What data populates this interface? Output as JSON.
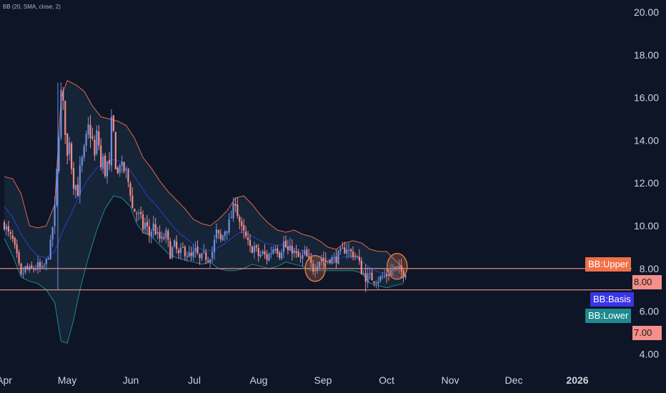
{
  "indicator": {
    "label": "BB (20, SMA, close, 2)"
  },
  "tags": {
    "upper_name": "BB:Upper",
    "upper_value": "8.00",
    "basis_name": "BB:Basis",
    "lower_name": "BB:Lower",
    "lower_value": "7.00"
  },
  "colors": {
    "background": "#0e1527",
    "up_candle": "#6f8fe0",
    "down_candle": "#f28b8b",
    "upper_band": "#e4664c",
    "basis": "#2b3fc8",
    "lower_band": "#1f8a8a",
    "band_fill": "#16273b",
    "hline": "#f0968c",
    "circle": "#e07a4a",
    "tag_upper": "#f07048",
    "tag_basis": "#3a35e6",
    "tag_lower": "#1e8a8f",
    "tag_value": "#f48f8a"
  },
  "chart_data": {
    "type": "candlestick",
    "title": "",
    "ylim": [
      4.0,
      20.0
    ],
    "y_ticks": [
      "20.00",
      "18.00",
      "16.00",
      "14.00",
      "12.00",
      "10.00",
      "8.00",
      "6.00",
      "4.00"
    ],
    "x_ticks": [
      "Apr",
      "May",
      "Jun",
      "Jul",
      "Aug",
      "Sep",
      "Oct",
      "Nov",
      "Dec",
      "2026"
    ],
    "horizontal_lines": [
      8.0,
      7.0
    ],
    "highlight_circles": [
      {
        "day": 148,
        "price": 8.0
      },
      {
        "day": 187,
        "price": 8.1
      }
    ],
    "close_anchors": [
      [
        0,
        10.1
      ],
      [
        2,
        9.6
      ],
      [
        4,
        9.3
      ],
      [
        6,
        8.5
      ],
      [
        8,
        7.6
      ],
      [
        10,
        8.0
      ],
      [
        12,
        7.9
      ],
      [
        14,
        8.0
      ],
      [
        16,
        8.1
      ],
      [
        18,
        7.9
      ],
      [
        20,
        8.3
      ],
      [
        22,
        9.1
      ],
      [
        24,
        10.8
      ],
      [
        25,
        12.5
      ],
      [
        26,
        14.4
      ],
      [
        27,
        16.2
      ],
      [
        28,
        15.6
      ],
      [
        29,
        14.5
      ],
      [
        30,
        13.2
      ],
      [
        31,
        14.1
      ],
      [
        32,
        12.8
      ],
      [
        33,
        12.0
      ],
      [
        34,
        11.9
      ],
      [
        35,
        11.6
      ],
      [
        36,
        12.6
      ],
      [
        38,
        13.5
      ],
      [
        40,
        14.6
      ],
      [
        42,
        14.0
      ],
      [
        43,
        13.2
      ],
      [
        44,
        14.3
      ],
      [
        45,
        13.8
      ],
      [
        46,
        12.7
      ],
      [
        47,
        13.1
      ],
      [
        48,
        12.5
      ],
      [
        49,
        12.9
      ],
      [
        50,
        12.7
      ],
      [
        51,
        14.8
      ],
      [
        52,
        14.3
      ],
      [
        53,
        12.9
      ],
      [
        54,
        12.4
      ],
      [
        55,
        13.0
      ],
      [
        56,
        12.7
      ],
      [
        58,
        12.5
      ],
      [
        60,
        11.6
      ],
      [
        61,
        10.8
      ],
      [
        63,
        10.6
      ],
      [
        65,
        10.3
      ],
      [
        66,
        9.9
      ],
      [
        67,
        10.1
      ],
      [
        69,
        9.6
      ],
      [
        71,
        10.0
      ],
      [
        73,
        9.5
      ],
      [
        75,
        9.3
      ],
      [
        77,
        9.6
      ],
      [
        79,
        8.7
      ],
      [
        81,
        9.1
      ],
      [
        83,
        8.6
      ],
      [
        85,
        8.9
      ],
      [
        87,
        8.7
      ],
      [
        89,
        8.5
      ],
      [
        91,
        8.8
      ],
      [
        93,
        8.4
      ],
      [
        95,
        8.6
      ],
      [
        97,
        8.5
      ],
      [
        99,
        8.8
      ],
      [
        101,
        9.7
      ],
      [
        103,
        9.3
      ],
      [
        105,
        9.8
      ],
      [
        107,
        10.1
      ],
      [
        109,
        10.8
      ],
      [
        110,
        11.2
      ],
      [
        111,
        10.6
      ],
      [
        112,
        10.2
      ],
      [
        113,
        9.8
      ],
      [
        115,
        9.4
      ],
      [
        117,
        8.9
      ],
      [
        119,
        9.0
      ],
      [
        121,
        8.6
      ],
      [
        123,
        8.7
      ],
      [
        125,
        8.5
      ],
      [
        127,
        8.8
      ],
      [
        129,
        9.1
      ],
      [
        131,
        8.7
      ],
      [
        133,
        9.2
      ],
      [
        135,
        8.8
      ],
      [
        137,
        8.9
      ],
      [
        139,
        8.6
      ],
      [
        141,
        8.4
      ],
      [
        143,
        8.7
      ],
      [
        145,
        8.3
      ],
      [
        147,
        8.0
      ],
      [
        149,
        8.3
      ],
      [
        151,
        8.5
      ],
      [
        153,
        8.3
      ],
      [
        155,
        8.5
      ],
      [
        157,
        8.4
      ],
      [
        159,
        8.6
      ],
      [
        161,
        8.8
      ],
      [
        163,
        9.0
      ],
      [
        164,
        8.8
      ],
      [
        166,
        8.7
      ],
      [
        168,
        8.5
      ],
      [
        170,
        7.9
      ],
      [
        172,
        7.6
      ],
      [
        174,
        7.6
      ],
      [
        176,
        7.5
      ],
      [
        178,
        7.5
      ],
      [
        180,
        7.6
      ],
      [
        182,
        7.7
      ],
      [
        184,
        7.9
      ],
      [
        186,
        8.0
      ],
      [
        188,
        7.9
      ],
      [
        190,
        7.8
      ],
      [
        191,
        7.9
      ]
    ],
    "bollinger": {
      "upper": [
        [
          0,
          12.3
        ],
        [
          4,
          12.2
        ],
        [
          8,
          11.5
        ],
        [
          12,
          10.0
        ],
        [
          16,
          9.9
        ],
        [
          20,
          10.0
        ],
        [
          24,
          11.0
        ],
        [
          27,
          16.0
        ],
        [
          30,
          16.8
        ],
        [
          34,
          16.6
        ],
        [
          38,
          16.3
        ],
        [
          42,
          15.6
        ],
        [
          46,
          15.1
        ],
        [
          50,
          15.0
        ],
        [
          54,
          14.9
        ],
        [
          58,
          14.7
        ],
        [
          62,
          14.1
        ],
        [
          66,
          13.2
        ],
        [
          70,
          12.7
        ],
        [
          74,
          12.1
        ],
        [
          78,
          11.6
        ],
        [
          82,
          11.2
        ],
        [
          86,
          10.8
        ],
        [
          90,
          10.3
        ],
        [
          94,
          10.1
        ],
        [
          98,
          10.0
        ],
        [
          102,
          10.3
        ],
        [
          106,
          10.7
        ],
        [
          110,
          11.3
        ],
        [
          114,
          11.4
        ],
        [
          118,
          11.0
        ],
        [
          122,
          10.5
        ],
        [
          126,
          10.1
        ],
        [
          130,
          9.8
        ],
        [
          134,
          9.7
        ],
        [
          138,
          9.8
        ],
        [
          142,
          9.6
        ],
        [
          146,
          9.5
        ],
        [
          150,
          9.3
        ],
        [
          154,
          9.0
        ],
        [
          158,
          8.9
        ],
        [
          162,
          9.2
        ],
        [
          166,
          9.3
        ],
        [
          170,
          9.2
        ],
        [
          174,
          8.9
        ],
        [
          178,
          8.8
        ],
        [
          182,
          8.8
        ],
        [
          186,
          8.4
        ],
        [
          190,
          8.0
        ]
      ],
      "basis": [
        [
          0,
          10.9
        ],
        [
          4,
          10.4
        ],
        [
          8,
          9.6
        ],
        [
          12,
          9.0
        ],
        [
          16,
          8.6
        ],
        [
          20,
          8.5
        ],
        [
          24,
          8.8
        ],
        [
          28,
          9.8
        ],
        [
          32,
          10.6
        ],
        [
          36,
          11.5
        ],
        [
          40,
          12.2
        ],
        [
          44,
          12.7
        ],
        [
          48,
          13.0
        ],
        [
          52,
          13.1
        ],
        [
          56,
          13.0
        ],
        [
          60,
          12.6
        ],
        [
          64,
          12.0
        ],
        [
          68,
          11.4
        ],
        [
          72,
          11.0
        ],
        [
          76,
          10.5
        ],
        [
          80,
          10.0
        ],
        [
          84,
          9.6
        ],
        [
          88,
          9.3
        ],
        [
          92,
          9.0
        ],
        [
          96,
          8.8
        ],
        [
          100,
          8.9
        ],
        [
          104,
          9.1
        ],
        [
          108,
          9.4
        ],
        [
          112,
          9.7
        ],
        [
          116,
          9.6
        ],
        [
          120,
          9.4
        ],
        [
          124,
          9.2
        ],
        [
          128,
          9.1
        ],
        [
          132,
          9.1
        ],
        [
          136,
          9.0
        ],
        [
          140,
          8.9
        ],
        [
          144,
          8.7
        ],
        [
          148,
          8.6
        ],
        [
          152,
          8.5
        ],
        [
          156,
          8.4
        ],
        [
          160,
          8.5
        ],
        [
          164,
          8.6
        ],
        [
          168,
          8.5
        ],
        [
          172,
          8.2
        ],
        [
          176,
          7.9
        ],
        [
          180,
          7.8
        ],
        [
          184,
          7.7
        ],
        [
          188,
          7.6
        ],
        [
          190,
          7.6
        ]
      ],
      "lower": [
        [
          0,
          9.4
        ],
        [
          4,
          8.6
        ],
        [
          8,
          7.6
        ],
        [
          12,
          7.4
        ],
        [
          16,
          7.3
        ],
        [
          20,
          7.0
        ],
        [
          24,
          6.4
        ],
        [
          27,
          4.6
        ],
        [
          30,
          4.5
        ],
        [
          33,
          5.6
        ],
        [
          36,
          7.0
        ],
        [
          40,
          8.5
        ],
        [
          44,
          9.8
        ],
        [
          48,
          10.8
        ],
        [
          52,
          11.4
        ],
        [
          56,
          11.3
        ],
        [
          60,
          10.9
        ],
        [
          63,
          10.1
        ],
        [
          66,
          9.7
        ],
        [
          70,
          9.5
        ],
        [
          74,
          9.1
        ],
        [
          78,
          8.7
        ],
        [
          82,
          8.5
        ],
        [
          86,
          8.4
        ],
        [
          90,
          8.3
        ],
        [
          94,
          8.2
        ],
        [
          98,
          8.3
        ],
        [
          102,
          8.0
        ],
        [
          106,
          7.9
        ],
        [
          110,
          7.9
        ],
        [
          114,
          8.0
        ],
        [
          118,
          8.2
        ],
        [
          122,
          8.1
        ],
        [
          126,
          8.0
        ],
        [
          130,
          8.1
        ],
        [
          134,
          8.3
        ],
        [
          138,
          8.2
        ],
        [
          142,
          8.1
        ],
        [
          146,
          7.9
        ],
        [
          150,
          7.9
        ],
        [
          154,
          7.9
        ],
        [
          158,
          7.9
        ],
        [
          162,
          7.9
        ],
        [
          166,
          7.9
        ],
        [
          170,
          7.8
        ],
        [
          174,
          7.3
        ],
        [
          178,
          7.2
        ],
        [
          182,
          7.1
        ],
        [
          186,
          7.2
        ],
        [
          190,
          7.3
        ]
      ]
    }
  }
}
